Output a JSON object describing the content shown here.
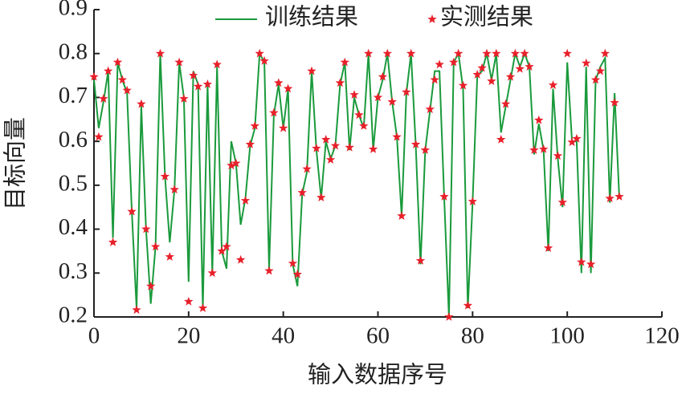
{
  "chart_data": {
    "type": "line",
    "xlabel": "输入数据序号",
    "ylabel": "目标向量",
    "x": [
      0,
      1,
      2,
      3,
      4,
      5,
      6,
      7,
      8,
      9,
      10,
      11,
      12,
      13,
      14,
      15,
      16,
      17,
      18,
      19,
      20,
      21,
      22,
      23,
      24,
      25,
      26,
      27,
      28,
      29,
      30,
      31,
      32,
      33,
      34,
      35,
      36,
      37,
      38,
      39,
      40,
      41,
      42,
      43,
      44,
      45,
      46,
      47,
      48,
      49,
      50,
      51,
      52,
      53,
      54,
      55,
      56,
      57,
      58,
      59,
      60,
      61,
      62,
      63,
      64,
      65,
      66,
      67,
      68,
      69,
      70,
      71,
      72,
      73,
      74,
      75,
      76,
      77,
      78,
      79,
      80,
      81,
      82,
      83,
      84,
      85,
      86,
      87,
      88,
      89,
      90,
      91,
      92,
      93,
      94,
      95,
      96,
      97,
      98,
      99,
      100,
      101,
      102,
      103,
      104,
      105,
      106,
      107,
      108,
      109,
      110,
      111
    ],
    "series": [
      {
        "name": "训练结果",
        "color": "#1a9a3c",
        "style": "line",
        "values": [
          0.74,
          0.63,
          0.69,
          0.76,
          0.38,
          0.78,
          0.74,
          0.71,
          0.44,
          0.22,
          0.68,
          0.4,
          0.23,
          0.36,
          0.8,
          0.52,
          0.37,
          0.49,
          0.78,
          0.7,
          0.28,
          0.76,
          0.73,
          0.22,
          0.73,
          0.3,
          0.77,
          0.35,
          0.31,
          0.6,
          0.55,
          0.41,
          0.47,
          0.59,
          0.63,
          0.8,
          0.78,
          0.31,
          0.66,
          0.73,
          0.63,
          0.72,
          0.32,
          0.27,
          0.48,
          0.53,
          0.76,
          0.58,
          0.47,
          0.6,
          0.56,
          0.59,
          0.73,
          0.78,
          0.58,
          0.7,
          0.66,
          0.63,
          0.8,
          0.58,
          0.7,
          0.74,
          0.8,
          0.69,
          0.61,
          0.43,
          0.71,
          0.8,
          0.59,
          0.32,
          0.58,
          0.67,
          0.76,
          0.76,
          0.47,
          0.2,
          0.78,
          0.8,
          0.72,
          0.22,
          0.46,
          0.75,
          0.76,
          0.8,
          0.74,
          0.8,
          0.62,
          0.68,
          0.74,
          0.8,
          0.77,
          0.8,
          0.77,
          0.57,
          0.64,
          0.58,
          0.35,
          0.72,
          0.56,
          0.45,
          0.78,
          0.6,
          0.6,
          0.3,
          0.77,
          0.3,
          0.74,
          0.77,
          0.79,
          0.46,
          0.71,
          0.47
        ]
      },
      {
        "name": "实测结果",
        "color": "#e8202a",
        "style": "star",
        "values": [
          0.747,
          0.61,
          0.697,
          0.76,
          0.37,
          0.78,
          0.74,
          0.716,
          0.44,
          0.216,
          0.685,
          0.4,
          0.27,
          0.36,
          0.8,
          0.52,
          0.337,
          0.49,
          0.78,
          0.697,
          0.235,
          0.75,
          0.725,
          0.22,
          0.73,
          0.3,
          0.775,
          0.35,
          0.36,
          0.545,
          0.55,
          0.33,
          0.465,
          0.593,
          0.635,
          0.8,
          0.783,
          0.305,
          0.665,
          0.733,
          0.63,
          0.72,
          0.322,
          0.297,
          0.483,
          0.537,
          0.76,
          0.584,
          0.472,
          0.604,
          0.558,
          0.59,
          0.733,
          0.78,
          0.586,
          0.706,
          0.66,
          0.635,
          0.8,
          0.582,
          0.7,
          0.747,
          0.8,
          0.69,
          0.61,
          0.43,
          0.712,
          0.8,
          0.593,
          0.328,
          0.58,
          0.673,
          0.74,
          0.775,
          0.474,
          0.2,
          0.78,
          0.8,
          0.727,
          0.226,
          0.463,
          0.752,
          0.767,
          0.8,
          0.737,
          0.8,
          0.604,
          0.685,
          0.747,
          0.8,
          0.765,
          0.8,
          0.77,
          0.58,
          0.648,
          0.582,
          0.357,
          0.728,
          0.567,
          0.461,
          0.8,
          0.598,
          0.606,
          0.325,
          0.778,
          0.32,
          0.74,
          0.76,
          0.8,
          0.47,
          0.688,
          0.474
        ]
      }
    ],
    "xlim": [
      0,
      120
    ],
    "xticks": [
      0,
      20,
      40,
      60,
      80,
      100,
      120
    ],
    "ylim": [
      0.2,
      0.9
    ],
    "yticks": [
      0.2,
      0.3,
      0.4,
      0.5,
      0.6,
      0.7,
      0.8,
      0.9
    ],
    "legend": "top"
  }
}
